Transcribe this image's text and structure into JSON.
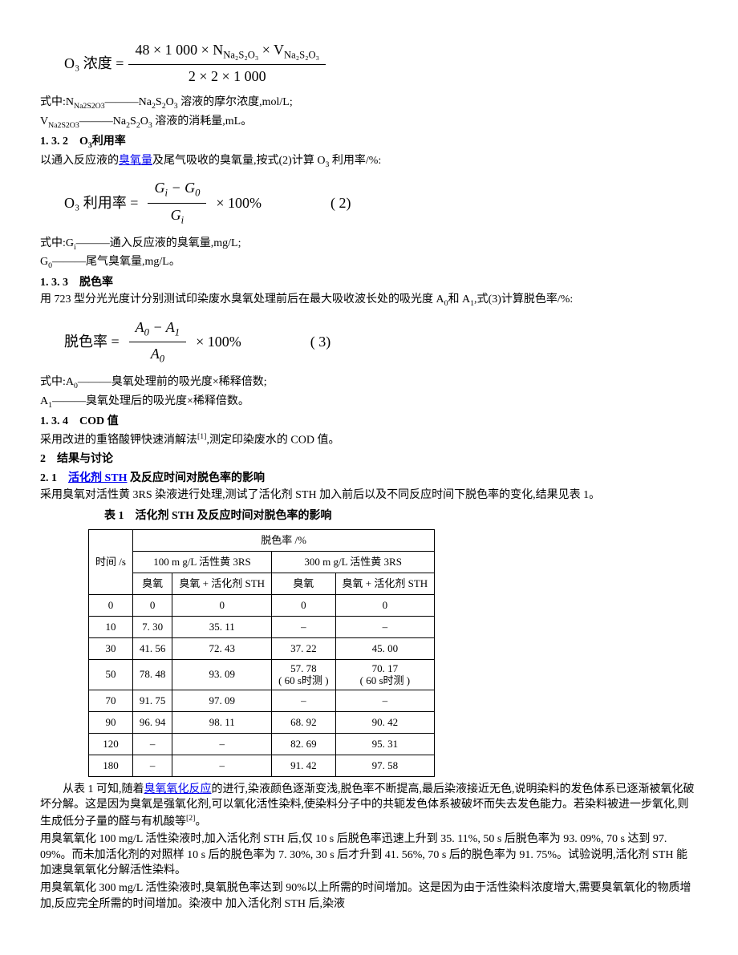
{
  "formula1": {
    "left": "O₃ 浓度 =",
    "numerator": "48 × 1 000 × N",
    "num_sub1": "Na₂S₂O₃",
    "num_mid": " × V",
    "num_sub2": "Na₂S₂O₃",
    "denominator": "2 × 2 × 1 000"
  },
  "def1_line1_a": "式中:N",
  "def1_line1_sub": "Na2S2O3",
  "def1_line1_b": "———Na",
  "def1_line1_c": "S",
  "def1_line1_d": "O",
  "def1_line1_e": " 溶液的摩尔浓度,mol/L;",
  "def1_line2_a": "V",
  "def1_line2_sub": "Na2S2O3",
  "def1_line2_b": "———Na",
  "def1_line2_c": "S",
  "def1_line2_d": "O",
  "def1_line2_e": " 溶液的消耗量,mL。",
  "h132": "1. 3. 2　O",
  "h132_sub": "3",
  "h132_b": "利用率",
  "p132_a": "以通入反应液的",
  "p132_link": "臭氧量",
  "p132_b": "及尾气吸收的臭氧量,按式(2)计算 O",
  "p132_c": " 利用率/%:",
  "formula2": {
    "left": "O₃ 利用率 =",
    "num_a": "G",
    "num_sub_i": "i",
    "num_minus": " − G",
    "num_sub_0": "0",
    "den_a": "G",
    "den_sub": "i",
    "right": " × 100%",
    "label": "( 2)"
  },
  "def2_line1_a": "式中:G",
  "def2_line1_sub": "i",
  "def2_line1_b": "———通入反应液的臭氧量,mg/L;",
  "def2_line2_a": "G",
  "def2_line2_sub": "0",
  "def2_line2_b": "———尾气臭氧量,mg/L。",
  "h133": "1. 3. 3　脱色率",
  "p133_a": "用 723 型分光光度计分别测试印染废水臭氧处理前后在最大吸收波长处的吸光度 A",
  "p133_b": "和 A",
  "p133_c": ",式(3)计算脱色率/%:",
  "formula3": {
    "left": "脱色率 =",
    "num_a": "A",
    "num_sub0": "0",
    "num_minus": " − A",
    "num_sub1": "1",
    "den_a": "A",
    "den_sub": "0",
    "right": " × 100%",
    "label": "( 3)"
  },
  "def3_line1_a": "式中:A",
  "def3_line1_sub": "0",
  "def3_line1_b": "———臭氧处理前的吸光度×稀释倍数;",
  "def3_line2_a": "A",
  "def3_line2_sub": "1",
  "def3_line2_b": "———臭氧处理后的吸光度×稀释倍数。",
  "h134": "1. 3. 4　COD 值",
  "p134": "采用改进的重铬酸钾快速消解法",
  "p134_sup": "[1]",
  "p134_b": ",测定印染废水的 COD 值。",
  "h2": "2　结果与讨论",
  "h21_a": "2. 1　",
  "h21_link": "活化剂 STH",
  "h21_b": " 及反应时间对脱色率的影响",
  "p21": "采用臭氧对活性黄 3RS 染液进行处理,测试了活化剂 STH 加入前后以及不同反应时间下脱色率的变化,结果见表 1。",
  "table1": {
    "title": "表 1　活化剂 STH 及反应时间对脱色率的影响",
    "header1": "时间 /s",
    "header2": "脱色率 /%",
    "subheader1": "100 m g/L 活性黄 3RS",
    "subheader2": "300 m g/L 活性黄 3RS",
    "col1": "臭氧",
    "col2": "臭氧 + 活化剂 STH",
    "col3": "臭氧",
    "col4": "臭氧 + 活化剂 STH",
    "rows": [
      {
        "t": "0",
        "c1": "0",
        "c2": "0",
        "c3": "0",
        "c4": "0"
      },
      {
        "t": "10",
        "c1": "7. 30",
        "c2": "35. 11",
        "c3": "–",
        "c4": "–"
      },
      {
        "t": "30",
        "c1": "41. 56",
        "c2": "72. 43",
        "c3": "37. 22",
        "c4": "45. 00"
      },
      {
        "t": "50",
        "c1": "78. 48",
        "c2": "93. 09",
        "c3": "57. 78",
        "c3b": "( 60 s时测 )",
        "c4": "70. 17",
        "c4b": "( 60 s时测 )"
      },
      {
        "t": "70",
        "c1": "91. 75",
        "c2": "97. 09",
        "c3": "–",
        "c4": "–"
      },
      {
        "t": "90",
        "c1": "96. 94",
        "c2": "98. 11",
        "c3": "68. 92",
        "c4": "90. 42"
      },
      {
        "t": "120",
        "c1": "–",
        "c2": "–",
        "c3": "82. 69",
        "c4": "95. 31"
      },
      {
        "t": "180",
        "c1": "–",
        "c2": "–",
        "c3": "91. 42",
        "c4": "97. 58"
      }
    ]
  },
  "para1_a": "从表 1 可知,随着",
  "para1_link": "臭氧氧化反应",
  "para1_b": "的进行,染液颜色逐渐变浅,脱色率不断提高,最后染液接近无色,说明染料的发色体系已逐渐被氧化破坏分解。这是因为臭氧是强氧化剂,可以氧化活性染料,使染料分子中的共轭发色体系被破坏而失去发色能力。若染料被进一步氧化,则生成低分子量的醛与有机酸等",
  "para1_sup": "[2]",
  "para1_c": "。",
  "para2": "用臭氧氧化 100 mg/L 活性染液时,加入活化剂 STH 后,仅 10 s 后脱色率迅速上升到 35. 11%, 50 s 后脱色率为 93. 09%, 70 s 达到 97. 09%。而未加活化剂的对照样 10 s 后的脱色率为 7. 30%, 30 s 后才升到 41. 56%, 70 s 后的脱色率为 91. 75%。试验说明,活化剂 STH 能加速臭氧氧化分解活性染料。",
  "para3": "用臭氧氧化 300 mg/L 活性染液时,臭氧脱色率达到 90%以上所需的时间增加。这是因为由于活性染料浓度增大,需要臭氧氧化的物质增加,反应完全所需的时间增加。染液中 加入活化剂 STH 后,染液"
}
